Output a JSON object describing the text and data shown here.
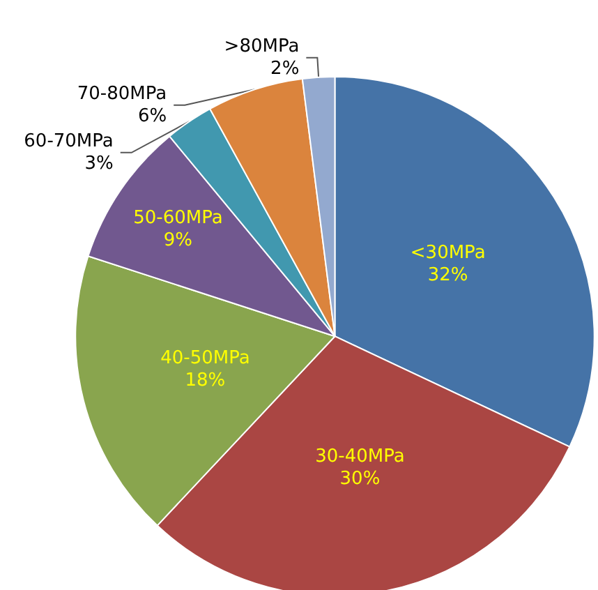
{
  "chart_data": {
    "type": "pie",
    "categories": [
      "<30MPa",
      "30-40MPa",
      "40-50MPa",
      "50-60MPa",
      "60-70MPa",
      "70-80MPa",
      ">80MPa"
    ],
    "values": [
      32,
      30,
      18,
      9,
      3,
      6,
      2
    ],
    "value_labels": [
      "32%",
      "30%",
      "18%",
      "9%",
      "3%",
      "6%",
      "2%"
    ],
    "colors": [
      "#4573a7",
      "#aa4643",
      "#89a54e",
      "#71588f",
      "#4198af",
      "#db843d",
      "#93a9cf"
    ],
    "legend": false
  }
}
